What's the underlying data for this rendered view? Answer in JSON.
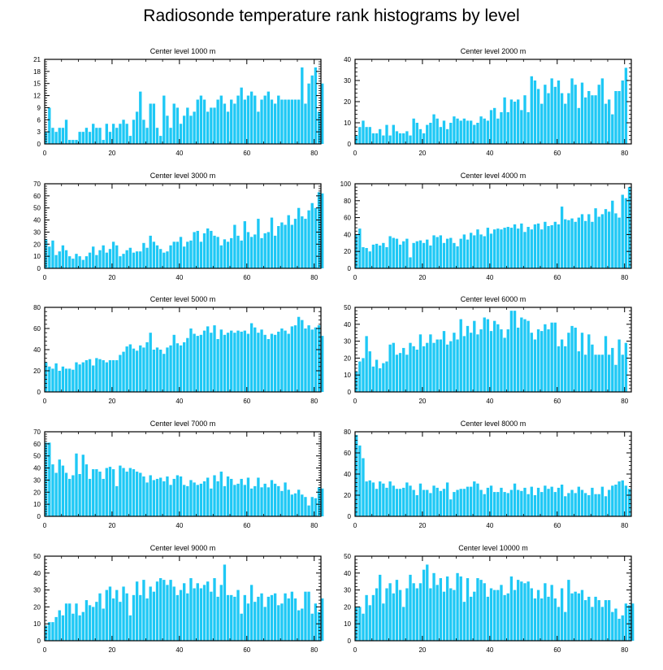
{
  "title": "Radiosonde temperature rank histograms by level",
  "colors": {
    "bar": "#1ec8f5",
    "axis": "#000000",
    "background": "#ffffff"
  },
  "chart_data": [
    {
      "type": "bar",
      "title": "Center level 1000 m",
      "xlim": [
        0,
        82
      ],
      "ylim": [
        0,
        21
      ],
      "xticks": [
        0,
        20,
        40,
        60,
        80
      ],
      "yticks": [
        0,
        3,
        6,
        9,
        12,
        15,
        18,
        21
      ],
      "values": [
        3,
        9,
        4,
        3,
        4,
        4,
        6,
        1,
        1,
        1,
        3,
        3,
        4,
        3,
        5,
        4,
        4,
        1,
        5,
        3,
        5,
        4,
        5,
        6,
        5,
        2,
        6,
        8,
        13,
        6,
        4,
        10,
        10,
        4,
        2,
        12,
        7,
        4,
        10,
        9,
        5,
        7,
        9,
        7,
        8,
        11,
        12,
        11,
        8,
        9,
        9,
        11,
        12,
        10,
        8,
        11,
        10,
        12,
        14,
        11,
        12,
        13,
        12,
        8,
        11,
        12,
        13,
        11,
        10,
        12,
        11,
        11,
        11,
        11,
        11,
        11,
        19,
        10,
        15,
        17,
        19,
        8,
        15
      ]
    },
    {
      "type": "bar",
      "title": "Center level 2000 m",
      "xlim": [
        0,
        82
      ],
      "ylim": [
        0,
        40
      ],
      "xticks": [
        0,
        20,
        40,
        60,
        80
      ],
      "yticks": [
        0,
        10,
        20,
        30,
        40
      ],
      "values": [
        4,
        8,
        11,
        8,
        8,
        5,
        5,
        7,
        4,
        9,
        4,
        9,
        6,
        5,
        5,
        6,
        4,
        12,
        10,
        7,
        5,
        9,
        10,
        14,
        12,
        8,
        11,
        7,
        10,
        13,
        12,
        11,
        12,
        11,
        11,
        9,
        10,
        13,
        12,
        11,
        16,
        17,
        12,
        15,
        22,
        15,
        21,
        20,
        21,
        16,
        23,
        15,
        32,
        30,
        26,
        19,
        28,
        24,
        31,
        27,
        30,
        24,
        19,
        24,
        31,
        28,
        17,
        29,
        22,
        25,
        23,
        23,
        28,
        31,
        19,
        21,
        14,
        25,
        25,
        30,
        36
      ]
    },
    {
      "type": "bar",
      "title": "Center level 3000 m",
      "xlim": [
        0,
        82
      ],
      "ylim": [
        0,
        70
      ],
      "xticks": [
        0,
        20,
        40,
        60,
        80
      ],
      "yticks": [
        0,
        10,
        20,
        30,
        40,
        50,
        60,
        70
      ],
      "values": [
        24,
        18,
        23,
        11,
        14,
        19,
        15,
        10,
        8,
        12,
        10,
        7,
        10,
        13,
        18,
        11,
        15,
        19,
        13,
        16,
        22,
        19,
        10,
        12,
        15,
        17,
        13,
        14,
        14,
        21,
        17,
        27,
        22,
        19,
        16,
        13,
        14,
        19,
        22,
        22,
        26,
        18,
        22,
        23,
        30,
        31,
        22,
        29,
        33,
        31,
        27,
        26,
        19,
        24,
        22,
        25,
        36,
        27,
        23,
        39,
        30,
        26,
        28,
        41,
        25,
        29,
        30,
        42,
        27,
        35,
        38,
        36,
        44,
        36,
        41,
        50,
        43,
        41,
        48,
        54,
        50,
        63,
        62
      ]
    },
    {
      "type": "bar",
      "title": "Center level 4000 m",
      "xlim": [
        0,
        82
      ],
      "ylim": [
        0,
        100
      ],
      "xticks": [
        0,
        20,
        40,
        60,
        80
      ],
      "yticks": [
        0,
        20,
        40,
        60,
        80,
        100
      ],
      "values": [
        40,
        47,
        25,
        24,
        20,
        28,
        29,
        27,
        30,
        25,
        38,
        36,
        35,
        28,
        32,
        35,
        13,
        30,
        32,
        33,
        30,
        34,
        27,
        39,
        37,
        39,
        30,
        35,
        36,
        30,
        26,
        35,
        40,
        34,
        42,
        39,
        46,
        40,
        38,
        48,
        41,
        46,
        47,
        46,
        48,
        49,
        48,
        52,
        47,
        53,
        43,
        49,
        46,
        52,
        53,
        46,
        55,
        50,
        51,
        55,
        52,
        73,
        58,
        57,
        59,
        55,
        60,
        64,
        56,
        64,
        55,
        71,
        61,
        64,
        70,
        67,
        80,
        65,
        60,
        87,
        83,
        96
      ]
    },
    {
      "type": "bar",
      "title": "Center level 5000 m",
      "xlim": [
        0,
        82
      ],
      "ylim": [
        0,
        80
      ],
      "xticks": [
        0,
        20,
        40,
        60,
        80
      ],
      "yticks": [
        0,
        20,
        40,
        60,
        80
      ],
      "values": [
        28,
        24,
        22,
        27,
        20,
        24,
        22,
        22,
        21,
        28,
        26,
        28,
        30,
        31,
        25,
        32,
        31,
        30,
        28,
        30,
        30,
        30,
        35,
        38,
        43,
        45,
        41,
        39,
        44,
        42,
        47,
        56,
        40,
        42,
        40,
        36,
        42,
        44,
        54,
        46,
        44,
        47,
        51,
        60,
        55,
        53,
        54,
        58,
        62,
        56,
        63,
        50,
        59,
        54,
        56,
        58,
        56,
        58,
        57,
        58,
        55,
        65,
        61,
        56,
        59,
        54,
        50,
        55,
        54,
        57,
        60,
        58,
        55,
        62,
        63,
        71,
        68,
        60,
        63,
        59,
        61,
        63,
        53
      ]
    },
    {
      "type": "bar",
      "title": "Center level 6000 m",
      "xlim": [
        0,
        82
      ],
      "ylim": [
        0,
        50
      ],
      "xticks": [
        0,
        20,
        40,
        60,
        80
      ],
      "yticks": [
        0,
        10,
        20,
        30,
        40,
        50
      ],
      "values": [
        12,
        18,
        20,
        33,
        24,
        15,
        19,
        14,
        17,
        18,
        28,
        29,
        22,
        23,
        26,
        22,
        29,
        27,
        25,
        34,
        27,
        29,
        34,
        29,
        31,
        31,
        36,
        28,
        30,
        35,
        31,
        43,
        33,
        39,
        35,
        42,
        34,
        37,
        44,
        43,
        36,
        42,
        40,
        37,
        32,
        37,
        48,
        48,
        38,
        44,
        43,
        42,
        35,
        31,
        37,
        36,
        40,
        37,
        41,
        41,
        27,
        31,
        27,
        35,
        39,
        38,
        24,
        35,
        22,
        34,
        28,
        22,
        22,
        22,
        33,
        22,
        26,
        16,
        31,
        22,
        29
      ]
    },
    {
      "type": "bar",
      "title": "Center level 7000 m",
      "xlim": [
        0,
        82
      ],
      "ylim": [
        0,
        70
      ],
      "xticks": [
        0,
        20,
        40,
        60,
        80
      ],
      "yticks": [
        0,
        10,
        20,
        30,
        40,
        50,
        60,
        70
      ],
      "values": [
        61,
        61,
        43,
        36,
        47,
        42,
        36,
        31,
        34,
        52,
        35,
        51,
        43,
        31,
        39,
        39,
        37,
        31,
        40,
        41,
        39,
        25,
        42,
        40,
        37,
        40,
        39,
        37,
        36,
        33,
        28,
        34,
        30,
        31,
        32,
        29,
        33,
        26,
        31,
        34,
        33,
        26,
        25,
        30,
        28,
        26,
        27,
        29,
        32,
        23,
        34,
        29,
        37,
        25,
        33,
        31,
        26,
        27,
        31,
        26,
        32,
        23,
        25,
        32,
        24,
        27,
        24,
        30,
        27,
        25,
        21,
        28,
        22,
        18,
        19,
        22,
        18,
        16,
        9,
        16,
        15,
        24,
        23
      ]
    },
    {
      "type": "bar",
      "title": "Center level 8000 m",
      "xlim": [
        0,
        82
      ],
      "ylim": [
        0,
        80
      ],
      "xticks": [
        0,
        20,
        40,
        60,
        80
      ],
      "yticks": [
        0,
        20,
        40,
        60,
        80
      ],
      "values": [
        77,
        67,
        55,
        33,
        34,
        32,
        26,
        33,
        31,
        27,
        33,
        29,
        26,
        26,
        27,
        32,
        29,
        25,
        20,
        31,
        25,
        25,
        22,
        29,
        27,
        24,
        26,
        32,
        16,
        23,
        25,
        26,
        26,
        28,
        28,
        33,
        31,
        25,
        21,
        27,
        29,
        23,
        23,
        27,
        23,
        22,
        25,
        31,
        25,
        24,
        27,
        21,
        28,
        20,
        27,
        23,
        29,
        26,
        28,
        23,
        27,
        30,
        19,
        22,
        25,
        22,
        28,
        25,
        22,
        20,
        27,
        21,
        21,
        28,
        19,
        25,
        29,
        30,
        33,
        34,
        29,
        26
      ]
    },
    {
      "type": "bar",
      "title": "Center level 9000 m",
      "xlim": [
        0,
        82
      ],
      "ylim": [
        0,
        50
      ],
      "xticks": [
        0,
        20,
        40,
        60,
        80
      ],
      "yticks": [
        0,
        10,
        20,
        30,
        40,
        50
      ],
      "values": [
        9,
        11,
        11,
        14,
        18,
        15,
        22,
        22,
        16,
        22,
        15,
        17,
        24,
        21,
        20,
        23,
        28,
        19,
        30,
        32,
        25,
        30,
        23,
        32,
        28,
        15,
        27,
        35,
        27,
        36,
        25,
        32,
        29,
        35,
        37,
        36,
        33,
        36,
        32,
        27,
        30,
        34,
        28,
        37,
        31,
        34,
        31,
        33,
        35,
        29,
        37,
        26,
        33,
        45,
        27,
        27,
        26,
        30,
        16,
        27,
        22,
        33,
        23,
        26,
        28,
        20,
        26,
        27,
        28,
        21,
        22,
        28,
        25,
        29,
        25,
        18,
        19,
        29,
        29,
        16,
        22,
        17,
        25
      ]
    },
    {
      "type": "bar",
      "title": "Center level 10000 m",
      "xlim": [
        0,
        82
      ],
      "ylim": [
        0,
        50
      ],
      "xticks": [
        0,
        20,
        40,
        60,
        80
      ],
      "yticks": [
        0,
        10,
        20,
        30,
        40,
        50
      ],
      "values": [
        20,
        20,
        16,
        27,
        21,
        27,
        31,
        39,
        22,
        31,
        34,
        28,
        36,
        30,
        20,
        31,
        39,
        34,
        31,
        34,
        42,
        45,
        31,
        40,
        33,
        37,
        29,
        38,
        31,
        30,
        40,
        38,
        23,
        37,
        26,
        29,
        37,
        36,
        34,
        26,
        31,
        30,
        30,
        33,
        27,
        28,
        38,
        30,
        36,
        35,
        34,
        35,
        31,
        25,
        30,
        25,
        34,
        26,
        33,
        25,
        20,
        31,
        17,
        36,
        28,
        29,
        28,
        30,
        24,
        26,
        20,
        26,
        24,
        20,
        24,
        24,
        17,
        19,
        13,
        15,
        22,
        21,
        22
      ]
    }
  ]
}
